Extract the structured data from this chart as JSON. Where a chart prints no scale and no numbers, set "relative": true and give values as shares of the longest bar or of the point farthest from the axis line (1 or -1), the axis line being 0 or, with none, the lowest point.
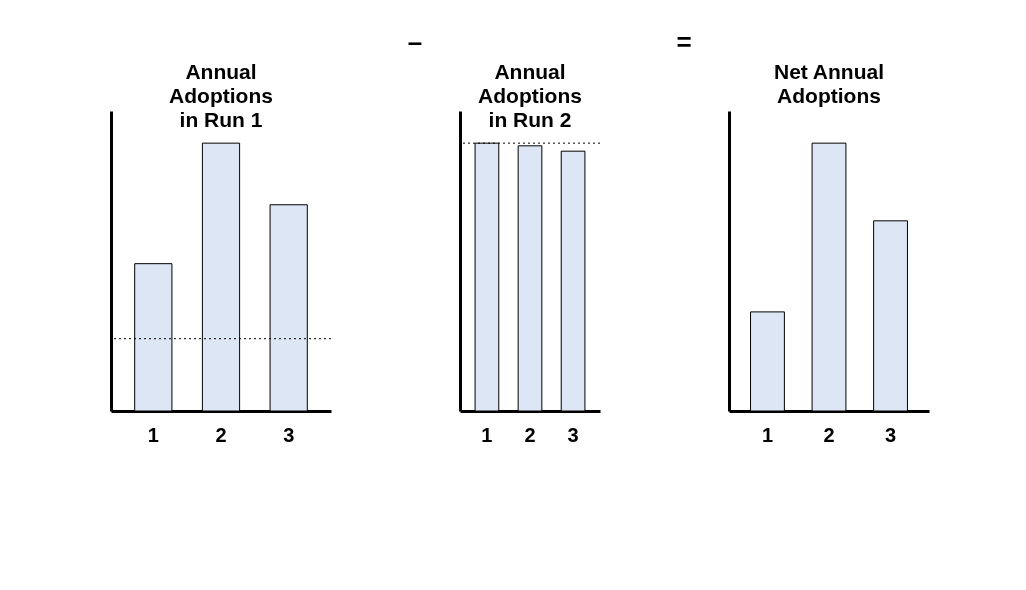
{
  "chart_data": [
    {
      "type": "bar",
      "title": "Annual Adoptions in Run 1",
      "categories": [
        "1",
        "2",
        "3"
      ],
      "values": [
        0.55,
        1,
        0.77
      ],
      "color": "#dce6f5",
      "relative": true,
      "tick_labels": "x",
      "ref_lines": [
        {
          "axis": "y",
          "value": 0.27,
          "line_style": "dotted"
        }
      ]
    },
    {
      "type": "bar",
      "title": "Annual Adoptions in Run 2",
      "categories": [
        "1",
        "2",
        "3"
      ],
      "values": [
        1,
        0.99,
        0.97
      ],
      "color": "#dce6f5",
      "relative": true,
      "tick_labels": "x",
      "ref_lines": [
        {
          "axis": "y",
          "value": 1,
          "line_style": "dotted"
        }
      ],
      "annotations": [
        "–"
      ]
    },
    {
      "type": "bar",
      "title": "Net Annual Adoptions",
      "categories": [
        "1",
        "2",
        "3"
      ],
      "values": [
        0.37,
        1,
        0.71
      ],
      "color": "#dce6f5",
      "relative": true,
      "tick_labels": "x",
      "annotations": [
        "="
      ]
    }
  ]
}
